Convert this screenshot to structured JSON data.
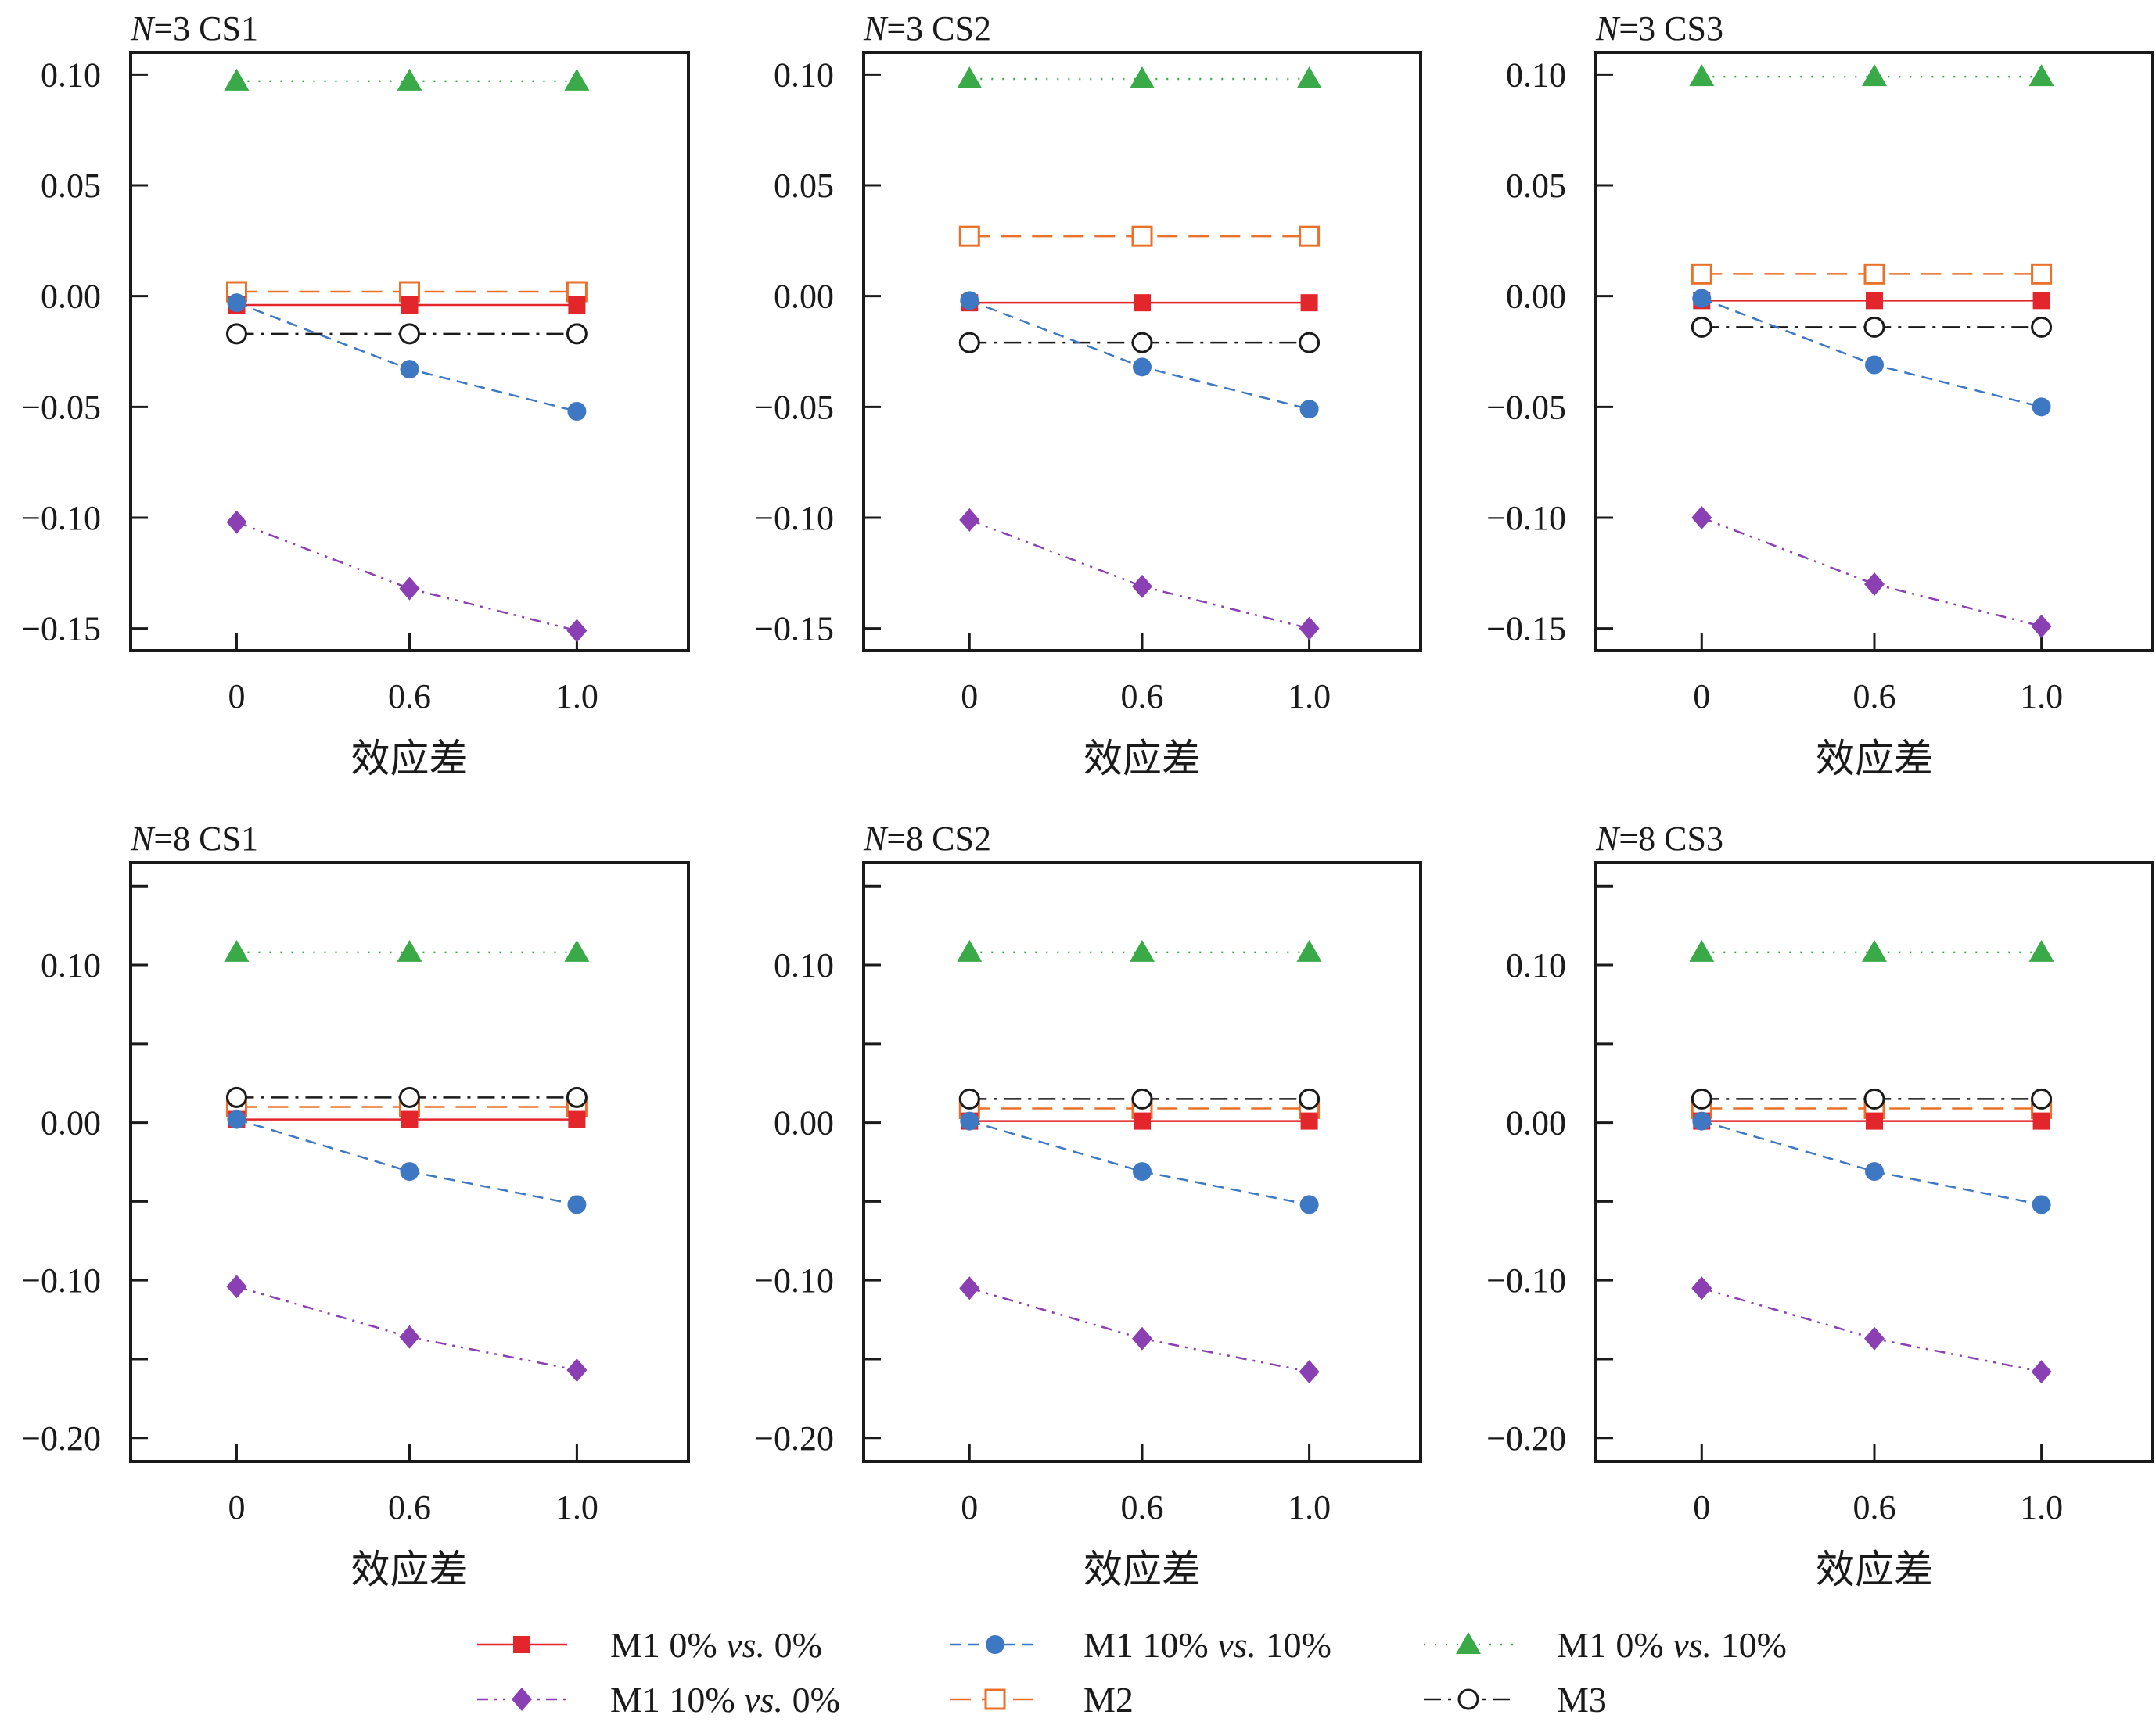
{
  "figure": {
    "xlabel": "效应差",
    "legend": [
      {
        "prefix": "M1 0%",
        "vs": "vs.",
        "suffix": " 0%",
        "color": "#e3262b",
        "marker": "square-filled",
        "dash": "solid"
      },
      {
        "prefix": "M1 10%",
        "vs": "vs.",
        "suffix": " 10%",
        "color": "#3f78c2",
        "marker": "circle-filled",
        "dash": "dashed"
      },
      {
        "prefix": "M1 0%",
        "vs": "vs.",
        "suffix": " 10%",
        "color": "#3aaa48",
        "marker": "triangle-filled",
        "dash": "dotted"
      },
      {
        "prefix": "M1 10%",
        "vs": "vs.",
        "suffix": " 0%",
        "color": "#8a3fb3",
        "marker": "diamond-filled",
        "dash": "dashdotdot"
      },
      {
        "prefix": "M2",
        "vs": "",
        "suffix": "",
        "color": "#e8722b",
        "marker": "square-open",
        "dash": "longdash"
      },
      {
        "prefix": "M3",
        "vs": "",
        "suffix": "",
        "color": "#1a1a1a",
        "marker": "circle-open",
        "dash": "dashdot"
      }
    ]
  },
  "chart_data": [
    {
      "type": "line",
      "title_n": "N",
      "title_rest": "=3 CS1",
      "categories": [
        "0",
        "0.6",
        "1.0"
      ],
      "xlabel": "效应差",
      "ylim": [
        -0.16,
        0.11
      ],
      "yticks": [
        0.1,
        0.05,
        0.0,
        -0.05,
        -0.1,
        -0.15
      ],
      "yticklabels": [
        "0.10",
        "0.05",
        "0.00",
        "−0.05",
        "−0.10",
        "−0.15"
      ],
      "series": [
        {
          "name": "M1 0% vs. 0%",
          "values": [
            -0.004,
            -0.004,
            -0.004
          ]
        },
        {
          "name": "M1 10% vs. 10%",
          "values": [
            -0.003,
            -0.033,
            -0.052
          ]
        },
        {
          "name": "M1 0% vs. 10%",
          "values": [
            0.097,
            0.097,
            0.097
          ]
        },
        {
          "name": "M1 10% vs. 0%",
          "values": [
            -0.102,
            -0.132,
            -0.151
          ]
        },
        {
          "name": "M2",
          "values": [
            0.002,
            0.002,
            0.002
          ]
        },
        {
          "name": "M3",
          "values": [
            -0.017,
            -0.017,
            -0.017
          ]
        }
      ]
    },
    {
      "type": "line",
      "title_n": "N",
      "title_rest": "=3 CS2",
      "categories": [
        "0",
        "0.6",
        "1.0"
      ],
      "xlabel": "效应差",
      "ylim": [
        -0.16,
        0.11
      ],
      "yticks": [
        0.1,
        0.05,
        0.0,
        -0.05,
        -0.1,
        -0.15
      ],
      "yticklabels": [
        "0.10",
        "0.05",
        "0.00",
        "−0.05",
        "−0.10",
        "−0.15"
      ],
      "series": [
        {
          "name": "M1 0% vs. 0%",
          "values": [
            -0.003,
            -0.003,
            -0.003
          ]
        },
        {
          "name": "M1 10% vs. 10%",
          "values": [
            -0.002,
            -0.032,
            -0.051
          ]
        },
        {
          "name": "M1 0% vs. 10%",
          "values": [
            0.098,
            0.098,
            0.098
          ]
        },
        {
          "name": "M1 10% vs. 0%",
          "values": [
            -0.101,
            -0.131,
            -0.15
          ]
        },
        {
          "name": "M2",
          "values": [
            0.027,
            0.027,
            0.027
          ]
        },
        {
          "name": "M3",
          "values": [
            -0.021,
            -0.021,
            -0.021
          ]
        }
      ]
    },
    {
      "type": "line",
      "title_n": "N",
      "title_rest": "=3 CS3",
      "categories": [
        "0",
        "0.6",
        "1.0"
      ],
      "xlabel": "效应差",
      "ylim": [
        -0.16,
        0.11
      ],
      "yticks": [
        0.1,
        0.05,
        0.0,
        -0.05,
        -0.1,
        -0.15
      ],
      "yticklabels": [
        "0.10",
        "0.05",
        "0.00",
        "−0.05",
        "−0.10",
        "−0.15"
      ],
      "series": [
        {
          "name": "M1 0% vs. 0%",
          "values": [
            -0.002,
            -0.002,
            -0.002
          ]
        },
        {
          "name": "M1 10% vs. 10%",
          "values": [
            -0.001,
            -0.031,
            -0.05
          ]
        },
        {
          "name": "M1 0% vs. 10%",
          "values": [
            0.099,
            0.099,
            0.099
          ]
        },
        {
          "name": "M1 10% vs. 0%",
          "values": [
            -0.1,
            -0.13,
            -0.149
          ]
        },
        {
          "name": "M2",
          "values": [
            0.01,
            0.01,
            0.01
          ]
        },
        {
          "name": "M3",
          "values": [
            -0.014,
            -0.014,
            -0.014
          ]
        }
      ]
    },
    {
      "type": "line",
      "title_n": "N",
      "title_rest": "=8 CS1",
      "categories": [
        "0",
        "0.6",
        "1.0"
      ],
      "xlabel": "效应差",
      "ylim": [
        -0.215,
        0.165
      ],
      "yticks": [
        0.15,
        0.1,
        0.05,
        0.0,
        -0.05,
        -0.1,
        -0.15,
        -0.2
      ],
      "yticklabels": [
        "",
        "0.10",
        "",
        "0.00",
        "",
        "−0.10",
        "",
        "−0.20"
      ],
      "series": [
        {
          "name": "M1 0% vs. 0%",
          "values": [
            0.002,
            0.002,
            0.002
          ]
        },
        {
          "name": "M1 10% vs. 10%",
          "values": [
            0.002,
            -0.031,
            -0.052
          ]
        },
        {
          "name": "M1 0% vs. 10%",
          "values": [
            0.108,
            0.108,
            0.108
          ]
        },
        {
          "name": "M1 10% vs. 0%",
          "values": [
            -0.104,
            -0.136,
            -0.157
          ]
        },
        {
          "name": "M2",
          "values": [
            0.01,
            0.01,
            0.01
          ]
        },
        {
          "name": "M3",
          "values": [
            0.016,
            0.016,
            0.016
          ]
        }
      ]
    },
    {
      "type": "line",
      "title_n": "N",
      "title_rest": "=8 CS2",
      "categories": [
        "0",
        "0.6",
        "1.0"
      ],
      "xlabel": "效应差",
      "ylim": [
        -0.215,
        0.165
      ],
      "yticks": [
        0.15,
        0.1,
        0.05,
        0.0,
        -0.05,
        -0.1,
        -0.15,
        -0.2
      ],
      "yticklabels": [
        "",
        "0.10",
        "",
        "0.00",
        "",
        "−0.10",
        "",
        "−0.20"
      ],
      "series": [
        {
          "name": "M1 0% vs. 0%",
          "values": [
            0.001,
            0.001,
            0.001
          ]
        },
        {
          "name": "M1 10% vs. 10%",
          "values": [
            0.001,
            -0.031,
            -0.052
          ]
        },
        {
          "name": "M1 0% vs. 10%",
          "values": [
            0.108,
            0.108,
            0.108
          ]
        },
        {
          "name": "M1 10% vs. 0%",
          "values": [
            -0.105,
            -0.137,
            -0.158
          ]
        },
        {
          "name": "M2",
          "values": [
            0.009,
            0.009,
            0.009
          ]
        },
        {
          "name": "M3",
          "values": [
            0.015,
            0.015,
            0.015
          ]
        }
      ]
    },
    {
      "type": "line",
      "title_n": "N",
      "title_rest": "=8 CS3",
      "categories": [
        "0",
        "0.6",
        "1.0"
      ],
      "xlabel": "效应差",
      "ylim": [
        -0.215,
        0.165
      ],
      "yticks": [
        0.15,
        0.1,
        0.05,
        0.0,
        -0.05,
        -0.1,
        -0.15,
        -0.2
      ],
      "yticklabels": [
        "",
        "0.10",
        "",
        "0.00",
        "",
        "−0.10",
        "",
        "−0.20"
      ],
      "series": [
        {
          "name": "M1 0% vs. 0%",
          "values": [
            0.001,
            0.001,
            0.001
          ]
        },
        {
          "name": "M1 10% vs. 10%",
          "values": [
            0.001,
            -0.031,
            -0.052
          ]
        },
        {
          "name": "M1 0% vs. 10%",
          "values": [
            0.108,
            0.108,
            0.108
          ]
        },
        {
          "name": "M1 10% vs. 0%",
          "values": [
            -0.105,
            -0.137,
            -0.158
          ]
        },
        {
          "name": "M2",
          "values": [
            0.009,
            0.009,
            0.009
          ]
        },
        {
          "name": "M3",
          "values": [
            0.015,
            0.015,
            0.015
          ]
        }
      ]
    }
  ]
}
